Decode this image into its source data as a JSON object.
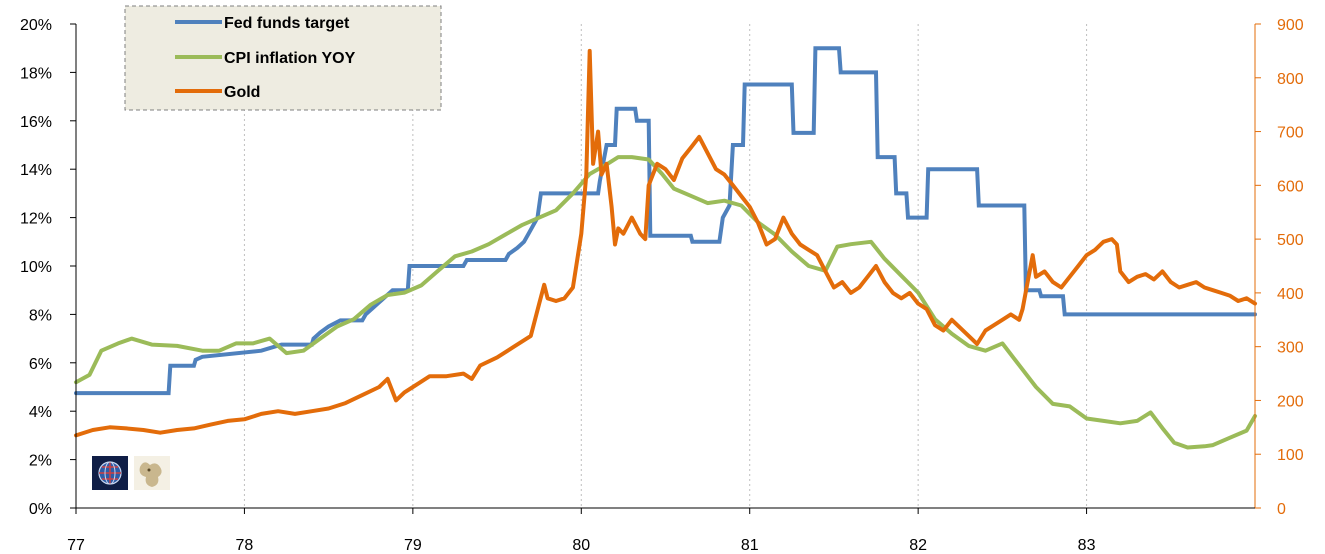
{
  "chart_data": {
    "type": "line",
    "title": "",
    "xlabel": "",
    "ylabel": "",
    "x_ticks": [
      "77",
      "78",
      "79",
      "80",
      "81",
      "82",
      "83"
    ],
    "x_range": [
      1977.0,
      1984.0
    ],
    "y_left": {
      "ticks": [
        "0%",
        "2%",
        "4%",
        "6%",
        "8%",
        "10%",
        "12%",
        "14%",
        "16%",
        "18%",
        "20%"
      ],
      "range": [
        0,
        20
      ],
      "unit": "%"
    },
    "y_right": {
      "ticks": [
        "0",
        "100",
        "200",
        "300",
        "400",
        "500",
        "600",
        "700",
        "800",
        "900"
      ],
      "range": [
        0,
        900
      ],
      "color": "#E36C0A"
    },
    "grid": "vertical dotted",
    "legend_position": "top-left",
    "series": [
      {
        "name": "Fed funds target",
        "axis": "left",
        "color": "#4F81BD",
        "step": true,
        "points": [
          [
            1977.0,
            4.75
          ],
          [
            1977.55,
            4.75
          ],
          [
            1977.56,
            5.875
          ],
          [
            1977.7,
            5.875
          ],
          [
            1977.71,
            6.125
          ],
          [
            1977.75,
            6.25
          ],
          [
            1978.1,
            6.5
          ],
          [
            1978.22,
            6.75
          ],
          [
            1978.4,
            6.75
          ],
          [
            1978.41,
            7.0
          ],
          [
            1978.45,
            7.25
          ],
          [
            1978.5,
            7.5
          ],
          [
            1978.57,
            7.75
          ],
          [
            1978.7,
            7.75
          ],
          [
            1978.72,
            8.0
          ],
          [
            1978.76,
            8.25
          ],
          [
            1978.8,
            8.5
          ],
          [
            1978.84,
            8.75
          ],
          [
            1978.88,
            9.0
          ],
          [
            1978.97,
            9.0
          ],
          [
            1978.98,
            10.0
          ],
          [
            1979.3,
            10.0
          ],
          [
            1979.32,
            10.25
          ],
          [
            1979.55,
            10.25
          ],
          [
            1979.57,
            10.5
          ],
          [
            1979.62,
            10.75
          ],
          [
            1979.66,
            11.0
          ],
          [
            1979.7,
            11.5
          ],
          [
            1979.74,
            12.0
          ],
          [
            1979.76,
            13.0
          ],
          [
            1980.1,
            13.0
          ],
          [
            1980.11,
            13.5
          ],
          [
            1980.15,
            15.0
          ],
          [
            1980.2,
            15.0
          ],
          [
            1980.21,
            16.5
          ],
          [
            1980.32,
            16.5
          ],
          [
            1980.33,
            16.0
          ],
          [
            1980.4,
            16.0
          ],
          [
            1980.41,
            11.25
          ],
          [
            1980.65,
            11.25
          ],
          [
            1980.66,
            11.0
          ],
          [
            1980.82,
            11.0
          ],
          [
            1980.84,
            12.0
          ],
          [
            1980.88,
            12.5
          ],
          [
            1980.9,
            15.0
          ],
          [
            1980.96,
            15.0
          ],
          [
            1980.97,
            17.5
          ],
          [
            1981.25,
            17.5
          ],
          [
            1981.26,
            15.5
          ],
          [
            1981.38,
            15.5
          ],
          [
            1981.39,
            19.0
          ],
          [
            1981.53,
            19.0
          ],
          [
            1981.54,
            18.0
          ],
          [
            1981.75,
            18.0
          ],
          [
            1981.76,
            14.5
          ],
          [
            1981.86,
            14.5
          ],
          [
            1981.87,
            13.0
          ],
          [
            1981.93,
            13.0
          ],
          [
            1981.94,
            12.0
          ],
          [
            1982.05,
            12.0
          ],
          [
            1982.06,
            14.0
          ],
          [
            1982.35,
            14.0
          ],
          [
            1982.36,
            12.5
          ],
          [
            1982.63,
            12.5
          ],
          [
            1982.64,
            9.0
          ],
          [
            1982.72,
            9.0
          ],
          [
            1982.73,
            8.75
          ],
          [
            1982.86,
            8.75
          ],
          [
            1982.87,
            8.0
          ],
          [
            1984.0,
            8.0
          ]
        ]
      },
      {
        "name": "CPI inflation YOY",
        "axis": "left",
        "color": "#9BBB59",
        "step": false,
        "points": [
          [
            1977.0,
            5.2
          ],
          [
            1977.08,
            5.5
          ],
          [
            1977.15,
            6.5
          ],
          [
            1977.25,
            6.8
          ],
          [
            1977.33,
            7.0
          ],
          [
            1977.45,
            6.75
          ],
          [
            1977.6,
            6.7
          ],
          [
            1977.75,
            6.5
          ],
          [
            1977.85,
            6.5
          ],
          [
            1977.95,
            6.8
          ],
          [
            1978.05,
            6.8
          ],
          [
            1978.15,
            7.0
          ],
          [
            1978.25,
            6.4
          ],
          [
            1978.35,
            6.5
          ],
          [
            1978.45,
            7.0
          ],
          [
            1978.55,
            7.5
          ],
          [
            1978.65,
            7.8
          ],
          [
            1978.75,
            8.4
          ],
          [
            1978.85,
            8.8
          ],
          [
            1978.95,
            8.9
          ],
          [
            1979.05,
            9.2
          ],
          [
            1979.15,
            9.8
          ],
          [
            1979.25,
            10.4
          ],
          [
            1979.35,
            10.6
          ],
          [
            1979.45,
            10.9
          ],
          [
            1979.55,
            11.3
          ],
          [
            1979.65,
            11.7
          ],
          [
            1979.75,
            12.0
          ],
          [
            1979.85,
            12.3
          ],
          [
            1979.95,
            13.0
          ],
          [
            1980.05,
            13.8
          ],
          [
            1980.15,
            14.2
          ],
          [
            1980.22,
            14.5
          ],
          [
            1980.3,
            14.5
          ],
          [
            1980.4,
            14.4
          ],
          [
            1980.48,
            13.8
          ],
          [
            1980.55,
            13.2
          ],
          [
            1980.65,
            12.9
          ],
          [
            1980.75,
            12.6
          ],
          [
            1980.85,
            12.7
          ],
          [
            1980.95,
            12.5
          ],
          [
            1981.05,
            11.8
          ],
          [
            1981.15,
            11.3
          ],
          [
            1981.25,
            10.6
          ],
          [
            1981.35,
            10.0
          ],
          [
            1981.45,
            9.8
          ],
          [
            1981.52,
            10.8
          ],
          [
            1981.6,
            10.9
          ],
          [
            1981.72,
            11.0
          ],
          [
            1981.8,
            10.3
          ],
          [
            1981.9,
            9.6
          ],
          [
            1982.0,
            8.9
          ],
          [
            1982.1,
            7.8
          ],
          [
            1982.2,
            7.2
          ],
          [
            1982.3,
            6.7
          ],
          [
            1982.4,
            6.5
          ],
          [
            1982.5,
            6.8
          ],
          [
            1982.6,
            5.9
          ],
          [
            1982.7,
            5.0
          ],
          [
            1982.8,
            4.3
          ],
          [
            1982.9,
            4.2
          ],
          [
            1983.0,
            3.7
          ],
          [
            1983.1,
            3.6
          ],
          [
            1983.2,
            3.5
          ],
          [
            1983.3,
            3.6
          ],
          [
            1983.38,
            3.95
          ],
          [
            1983.45,
            3.3
          ],
          [
            1983.52,
            2.7
          ],
          [
            1983.6,
            2.5
          ],
          [
            1983.7,
            2.55
          ],
          [
            1983.75,
            2.6
          ],
          [
            1983.85,
            2.9
          ],
          [
            1983.95,
            3.2
          ],
          [
            1984.0,
            3.8
          ]
        ]
      },
      {
        "name": "Gold",
        "axis": "right",
        "color": "#E36C0A",
        "step": false,
        "points": [
          [
            1977.0,
            135
          ],
          [
            1977.1,
            145
          ],
          [
            1977.2,
            150
          ],
          [
            1977.3,
            148
          ],
          [
            1977.4,
            145
          ],
          [
            1977.5,
            140
          ],
          [
            1977.6,
            145
          ],
          [
            1977.7,
            148
          ],
          [
            1977.8,
            155
          ],
          [
            1977.9,
            162
          ],
          [
            1978.0,
            165
          ],
          [
            1978.1,
            175
          ],
          [
            1978.2,
            180
          ],
          [
            1978.3,
            175
          ],
          [
            1978.4,
            180
          ],
          [
            1978.5,
            185
          ],
          [
            1978.6,
            195
          ],
          [
            1978.7,
            210
          ],
          [
            1978.8,
            225
          ],
          [
            1978.85,
            240
          ],
          [
            1978.9,
            200
          ],
          [
            1978.95,
            215
          ],
          [
            1979.0,
            225
          ],
          [
            1979.1,
            245
          ],
          [
            1979.2,
            245
          ],
          [
            1979.3,
            250
          ],
          [
            1979.35,
            240
          ],
          [
            1979.4,
            265
          ],
          [
            1979.5,
            280
          ],
          [
            1979.6,
            300
          ],
          [
            1979.7,
            320
          ],
          [
            1979.75,
            380
          ],
          [
            1979.78,
            415
          ],
          [
            1979.8,
            390
          ],
          [
            1979.85,
            385
          ],
          [
            1979.9,
            390
          ],
          [
            1979.95,
            410
          ],
          [
            1980.0,
            510
          ],
          [
            1980.03,
            620
          ],
          [
            1980.05,
            850
          ],
          [
            1980.07,
            640
          ],
          [
            1980.1,
            700
          ],
          [
            1980.12,
            620
          ],
          [
            1980.15,
            640
          ],
          [
            1980.18,
            560
          ],
          [
            1980.2,
            490
          ],
          [
            1980.22,
            520
          ],
          [
            1980.25,
            510
          ],
          [
            1980.3,
            540
          ],
          [
            1980.35,
            510
          ],
          [
            1980.38,
            500
          ],
          [
            1980.4,
            600
          ],
          [
            1980.45,
            640
          ],
          [
            1980.5,
            630
          ],
          [
            1980.55,
            610
          ],
          [
            1980.6,
            650
          ],
          [
            1980.65,
            670
          ],
          [
            1980.7,
            690
          ],
          [
            1980.75,
            660
          ],
          [
            1980.8,
            630
          ],
          [
            1980.85,
            620
          ],
          [
            1980.9,
            600
          ],
          [
            1980.95,
            580
          ],
          [
            1981.0,
            560
          ],
          [
            1981.05,
            530
          ],
          [
            1981.1,
            490
          ],
          [
            1981.15,
            500
          ],
          [
            1981.2,
            540
          ],
          [
            1981.25,
            510
          ],
          [
            1981.3,
            490
          ],
          [
            1981.35,
            480
          ],
          [
            1981.4,
            470
          ],
          [
            1981.45,
            440
          ],
          [
            1981.5,
            410
          ],
          [
            1981.55,
            420
          ],
          [
            1981.6,
            400
          ],
          [
            1981.65,
            410
          ],
          [
            1981.7,
            430
          ],
          [
            1981.75,
            450
          ],
          [
            1981.8,
            420
          ],
          [
            1981.85,
            400
          ],
          [
            1981.9,
            390
          ],
          [
            1981.95,
            400
          ],
          [
            1982.0,
            380
          ],
          [
            1982.05,
            370
          ],
          [
            1982.1,
            340
          ],
          [
            1982.15,
            330
          ],
          [
            1982.2,
            350
          ],
          [
            1982.3,
            320
          ],
          [
            1982.35,
            305
          ],
          [
            1982.4,
            330
          ],
          [
            1982.45,
            340
          ],
          [
            1982.5,
            350
          ],
          [
            1982.55,
            360
          ],
          [
            1982.6,
            350
          ],
          [
            1982.62,
            370
          ],
          [
            1982.65,
            420
          ],
          [
            1982.68,
            470
          ],
          [
            1982.7,
            430
          ],
          [
            1982.75,
            440
          ],
          [
            1982.8,
            420
          ],
          [
            1982.85,
            410
          ],
          [
            1982.9,
            430
          ],
          [
            1982.95,
            450
          ],
          [
            1983.0,
            470
          ],
          [
            1983.05,
            480
          ],
          [
            1983.1,
            495
          ],
          [
            1983.15,
            500
          ],
          [
            1983.18,
            490
          ],
          [
            1983.2,
            440
          ],
          [
            1983.25,
            420
          ],
          [
            1983.3,
            430
          ],
          [
            1983.35,
            435
          ],
          [
            1983.4,
            425
          ],
          [
            1983.45,
            440
          ],
          [
            1983.5,
            420
          ],
          [
            1983.55,
            410
          ],
          [
            1983.6,
            415
          ],
          [
            1983.65,
            420
          ],
          [
            1983.7,
            410
          ],
          [
            1983.75,
            405
          ],
          [
            1983.8,
            400
          ],
          [
            1983.85,
            395
          ],
          [
            1983.9,
            385
          ],
          [
            1983.95,
            390
          ],
          [
            1984.0,
            380
          ]
        ]
      }
    ]
  }
}
